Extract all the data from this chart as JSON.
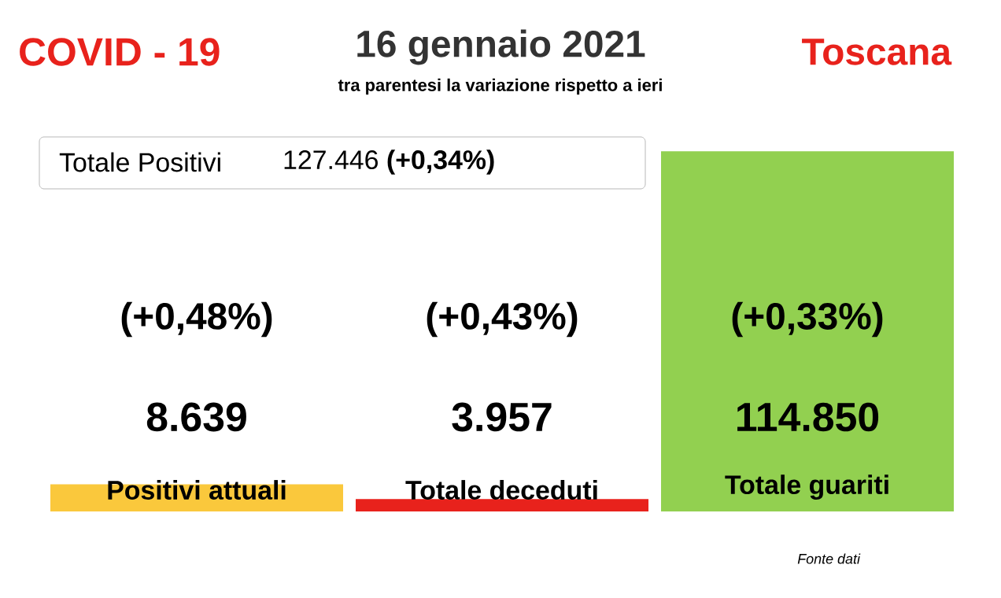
{
  "chart_data": {
    "type": "bar",
    "title": "COVID - 19",
    "subtitle": "16 gennaio 2021",
    "categories": [
      "Positivi attuali",
      "Totale deceduti",
      "Totale guariti"
    ],
    "values": [
      8639,
      3957,
      114850
    ],
    "colors": [
      "#fac83c",
      "#e8221c",
      "#92d050"
    ],
    "value_labels": [
      "8.639",
      "3.957",
      "114.850"
    ],
    "annotations": [
      "(+0,48%)",
      "(+0,43%)",
      "(+0,33%)",
      "Toscana",
      "tra parentesi la variazione rispetto a ieri",
      "Totale Positivi",
      "127.446 **(+0,34%)**",
      "Fonte dati"
    ]
  }
}
